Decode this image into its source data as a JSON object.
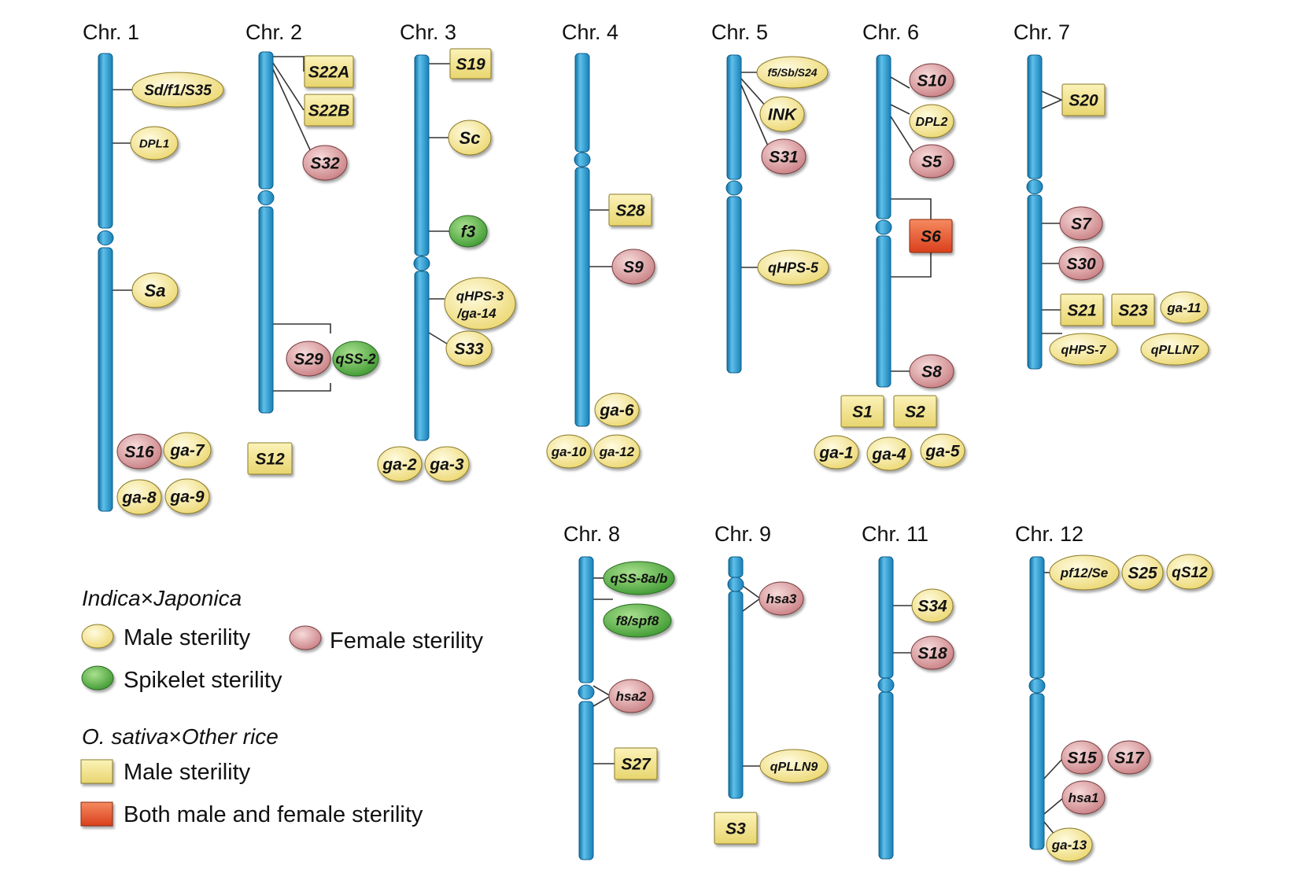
{
  "colors": {
    "chromosome": "#1e8fc6",
    "chromosome_highlight": "#5fc0ea",
    "male_sterility": "#f7ec9e",
    "female_sterility": "#dba1a3",
    "spikelet_sterility": "#58b84a",
    "box_male": "#f4e79a",
    "box_both": "#e75a34"
  },
  "chromosomes": [
    {
      "id": "chr1",
      "label": "Chr. 1"
    },
    {
      "id": "chr2",
      "label": "Chr. 2"
    },
    {
      "id": "chr3",
      "label": "Chr. 3"
    },
    {
      "id": "chr4",
      "label": "Chr. 4"
    },
    {
      "id": "chr5",
      "label": "Chr. 5"
    },
    {
      "id": "chr6",
      "label": "Chr. 6"
    },
    {
      "id": "chr7",
      "label": "Chr. 7"
    },
    {
      "id": "chr8",
      "label": "Chr. 8"
    },
    {
      "id": "chr9",
      "label": "Chr. 9"
    },
    {
      "id": "chr11",
      "label": "Chr. 11"
    },
    {
      "id": "chr12",
      "label": "Chr. 12"
    }
  ],
  "loci": [
    {
      "id": "sd-f1-s35",
      "label": "Sd/f1/S35",
      "kind": "male",
      "chr": "chr1"
    },
    {
      "id": "dpl1",
      "label": "DPL1",
      "kind": "male",
      "chr": "chr1"
    },
    {
      "id": "sa",
      "label": "Sa",
      "kind": "male",
      "chr": "chr1"
    },
    {
      "id": "s16",
      "label": "S16",
      "kind": "female",
      "chr": "chr1"
    },
    {
      "id": "ga-7",
      "label": "ga-7",
      "kind": "male",
      "chr": "chr1"
    },
    {
      "id": "ga-8",
      "label": "ga-8",
      "kind": "male",
      "chr": "chr1"
    },
    {
      "id": "ga-9",
      "label": "ga-9",
      "kind": "male",
      "chr": "chr1"
    },
    {
      "id": "s22a",
      "label": "S22A",
      "kind": "box_male",
      "chr": "chr2"
    },
    {
      "id": "s22b",
      "label": "S22B",
      "kind": "box_male",
      "chr": "chr2"
    },
    {
      "id": "s32",
      "label": "S32",
      "kind": "female",
      "chr": "chr2"
    },
    {
      "id": "s29",
      "label": "S29",
      "kind": "female",
      "chr": "chr2"
    },
    {
      "id": "qss-2",
      "label": "qSS-2",
      "kind": "spikelet",
      "chr": "chr2"
    },
    {
      "id": "s12",
      "label": "S12",
      "kind": "box_male",
      "chr": "chr2"
    },
    {
      "id": "s19",
      "label": "S19",
      "kind": "box_male",
      "chr": "chr3"
    },
    {
      "id": "sc",
      "label": "Sc",
      "kind": "male",
      "chr": "chr3"
    },
    {
      "id": "f3",
      "label": "f3",
      "kind": "spikelet",
      "chr": "chr3"
    },
    {
      "id": "qhps-3-ga-14",
      "label": "qHPS-3",
      "label2": "/ga-14",
      "kind": "male",
      "chr": "chr3"
    },
    {
      "id": "s33",
      "label": "S33",
      "kind": "male",
      "chr": "chr3"
    },
    {
      "id": "ga-2",
      "label": "ga-2",
      "kind": "male",
      "chr": "chr3"
    },
    {
      "id": "ga-3",
      "label": "ga-3",
      "kind": "male",
      "chr": "chr3"
    },
    {
      "id": "s28",
      "label": "S28",
      "kind": "box_male",
      "chr": "chr4"
    },
    {
      "id": "s9",
      "label": "S9",
      "kind": "female",
      "chr": "chr4"
    },
    {
      "id": "ga-6",
      "label": "ga-6",
      "kind": "male",
      "chr": "chr4"
    },
    {
      "id": "ga-10",
      "label": "ga-10",
      "kind": "male",
      "chr": "chr4"
    },
    {
      "id": "ga-12",
      "label": "ga-12",
      "kind": "male",
      "chr": "chr4"
    },
    {
      "id": "f5-sb-s24",
      "label": "f5/Sb/S24",
      "kind": "male",
      "chr": "chr5"
    },
    {
      "id": "ink",
      "label": "INK",
      "kind": "male",
      "chr": "chr5"
    },
    {
      "id": "s31",
      "label": "S31",
      "kind": "female",
      "chr": "chr5"
    },
    {
      "id": "qhps-5",
      "label": "qHPS-5",
      "kind": "male",
      "chr": "chr5"
    },
    {
      "id": "s10",
      "label": "S10",
      "kind": "female",
      "chr": "chr6"
    },
    {
      "id": "dpl2",
      "label": "DPL2",
      "kind": "male",
      "chr": "chr6"
    },
    {
      "id": "s5",
      "label": "S5",
      "kind": "female",
      "chr": "chr6"
    },
    {
      "id": "s6",
      "label": "S6",
      "kind": "box_both",
      "chr": "chr6"
    },
    {
      "id": "s8",
      "label": "S8",
      "kind": "female",
      "chr": "chr6"
    },
    {
      "id": "s1",
      "label": "S1",
      "kind": "box_male",
      "chr": "chr6"
    },
    {
      "id": "s2",
      "label": "S2",
      "kind": "box_male",
      "chr": "chr6"
    },
    {
      "id": "ga-1",
      "label": "ga-1",
      "kind": "male",
      "chr": "chr6"
    },
    {
      "id": "ga-4",
      "label": "ga-4",
      "kind": "male",
      "chr": "chr6"
    },
    {
      "id": "ga-5",
      "label": "ga-5",
      "kind": "male",
      "chr": "chr6"
    },
    {
      "id": "s20",
      "label": "S20",
      "kind": "box_male",
      "chr": "chr7"
    },
    {
      "id": "s7",
      "label": "S7",
      "kind": "female",
      "chr": "chr7"
    },
    {
      "id": "s30",
      "label": "S30",
      "kind": "female",
      "chr": "chr7"
    },
    {
      "id": "s21",
      "label": "S21",
      "kind": "box_male",
      "chr": "chr7"
    },
    {
      "id": "s23",
      "label": "S23",
      "kind": "box_male",
      "chr": "chr7"
    },
    {
      "id": "ga-11",
      "label": "ga-11",
      "kind": "male",
      "chr": "chr7"
    },
    {
      "id": "qhps-7",
      "label": "qHPS-7",
      "kind": "male",
      "chr": "chr7"
    },
    {
      "id": "qplln7",
      "label": "qPLLN7",
      "kind": "male",
      "chr": "chr7"
    },
    {
      "id": "qss-8ab",
      "label": "qSS-8a/b",
      "kind": "spikelet",
      "chr": "chr8"
    },
    {
      "id": "f8-spf8",
      "label": "f8/spf8",
      "kind": "spikelet",
      "chr": "chr8"
    },
    {
      "id": "hsa2",
      "label": "hsa2",
      "kind": "female",
      "chr": "chr8"
    },
    {
      "id": "s27",
      "label": "S27",
      "kind": "box_male",
      "chr": "chr8"
    },
    {
      "id": "hsa3",
      "label": "hsa3",
      "kind": "female",
      "chr": "chr9"
    },
    {
      "id": "qplln9",
      "label": "qPLLN9",
      "kind": "male",
      "chr": "chr9"
    },
    {
      "id": "s3",
      "label": "S3",
      "kind": "box_male",
      "chr": "chr9"
    },
    {
      "id": "s34",
      "label": "S34",
      "kind": "male",
      "chr": "chr11"
    },
    {
      "id": "s18",
      "label": "S18",
      "kind": "female",
      "chr": "chr11"
    },
    {
      "id": "pf12-se",
      "label": "pf12/Se",
      "kind": "male",
      "chr": "chr12"
    },
    {
      "id": "s25",
      "label": "S25",
      "kind": "male",
      "chr": "chr12"
    },
    {
      "id": "qs12",
      "label": "qS12",
      "kind": "male",
      "chr": "chr12"
    },
    {
      "id": "s15",
      "label": "S15",
      "kind": "female",
      "chr": "chr12"
    },
    {
      "id": "s17",
      "label": "S17",
      "kind": "female",
      "chr": "chr12"
    },
    {
      "id": "hsa1",
      "label": "hsa1",
      "kind": "female",
      "chr": "chr12"
    },
    {
      "id": "ga-13",
      "label": "ga-13",
      "kind": "male",
      "chr": "chr12"
    }
  ],
  "legend": {
    "group1_title_a": "Indica",
    "group1_title_b": "×",
    "group1_title_c": "Japonica",
    "male": "Male sterility",
    "female": "Female sterility",
    "spikelet": "Spikelet sterility",
    "group2_title_a": "O. sativa",
    "group2_title_b": "×",
    "group2_title_c": "Other rice",
    "box_male": "Male sterility",
    "box_both": "Both male and female sterility"
  }
}
